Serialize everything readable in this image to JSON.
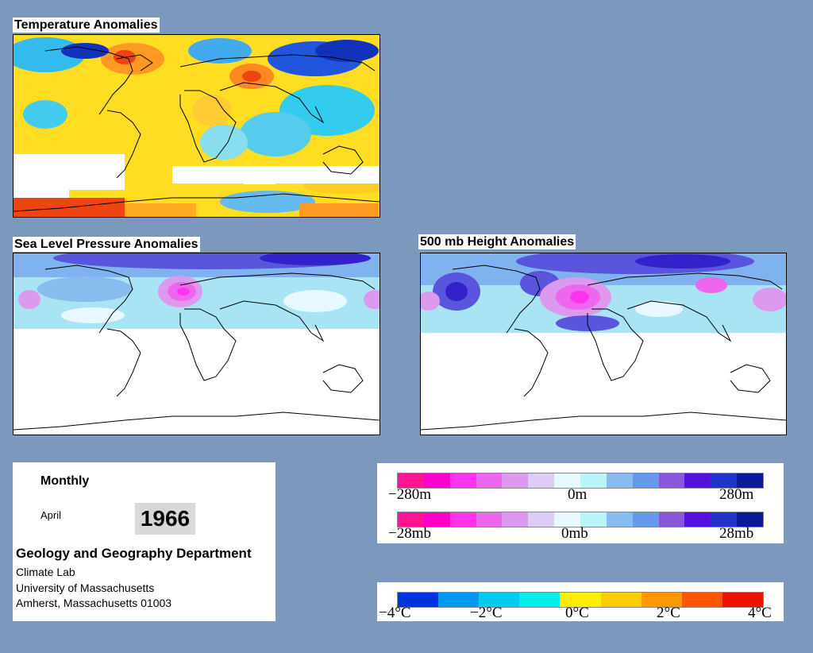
{
  "panels": {
    "temperature_title": "Temperature Anomalies",
    "slp_title": "Sea Level Pressure Anomalies",
    "height_title": "500 mb Height Anomalies"
  },
  "info": {
    "frequency": "Monthly",
    "month": "April",
    "year": "1966",
    "department": "Geology and Geography Department",
    "lab": "Climate Lab",
    "university": "University of Massachusetts",
    "address": "Amherst, Massachusetts 01003"
  },
  "legends": {
    "height": {
      "min": "−280m",
      "mid": "0m",
      "max": "280m"
    },
    "pressure": {
      "min": "−28mb",
      "mid": "0mb",
      "max": "28mb"
    },
    "temperature": {
      "t1": "−4°C",
      "t2": "−2°C",
      "t3": "0°C",
      "t4": "2°C",
      "t5": "4°C"
    }
  },
  "colors": {
    "background": "#7d98bd",
    "anomaly_scale": [
      "#ff1493",
      "#ff00cc",
      "#ff33ee",
      "#ee66ee",
      "#dd99ee",
      "#ddccf5",
      "#e8f8ff",
      "#b8f4f8",
      "#88bbee",
      "#6699ee",
      "#8855dd",
      "#5511dd",
      "#2233cc",
      "#0a1a99"
    ],
    "temperature_scale": [
      "#0033dd",
      "#0099ee",
      "#00ccee",
      "#00eeee",
      "#ffee00",
      "#ffcc00",
      "#ff9900",
      "#ff5500",
      "#ee1100"
    ]
  }
}
